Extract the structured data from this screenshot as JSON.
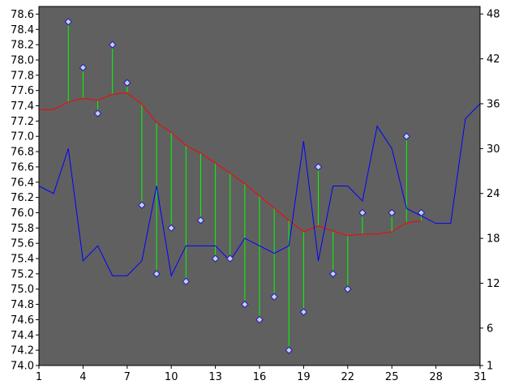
{
  "chart_data": {
    "type": "line",
    "x_axis": {
      "min": 1,
      "max": 31,
      "ticks": [
        1,
        4,
        7,
        10,
        13,
        16,
        19,
        22,
        25,
        28,
        31
      ]
    },
    "left_axis": {
      "min": 74.0,
      "max": 78.7,
      "ticks": [
        74.0,
        74.2,
        74.4,
        74.6,
        74.8,
        75.0,
        75.2,
        75.4,
        75.6,
        75.8,
        76.0,
        76.2,
        76.4,
        76.6,
        76.8,
        77.0,
        77.2,
        77.4,
        77.6,
        77.8,
        78.0,
        78.2,
        78.4,
        78.6
      ]
    },
    "right_axis": {
      "min": 1,
      "max": 49,
      "ticks": [
        1,
        6,
        12,
        18,
        24,
        30,
        36,
        42,
        48
      ]
    },
    "grid": false,
    "plot_background": "#606060",
    "series": [
      {
        "kind": "markers_with_drop_lines",
        "axis": "left",
        "marker_color": "#c8c8ff",
        "drop_line_color": "#00ff00",
        "x": [
          3,
          4,
          5,
          6,
          7,
          8,
          9,
          10,
          11,
          12,
          13,
          14,
          15,
          16,
          17,
          18,
          19,
          20,
          21,
          22,
          23,
          25,
          26,
          27
        ],
        "values": [
          78.5,
          77.9,
          77.3,
          78.2,
          77.7,
          76.1,
          75.2,
          75.8,
          75.1,
          75.9,
          75.4,
          75.4,
          74.8,
          74.6,
          74.9,
          74.2,
          74.7,
          76.6,
          75.2,
          75.0,
          76.0,
          76.0,
          77.0,
          76.0
        ]
      },
      {
        "kind": "line",
        "axis": "left",
        "color": "#ff0000",
        "x": [
          1,
          2,
          3,
          4,
          5,
          6,
          7,
          8,
          9,
          10,
          11,
          12,
          13,
          14,
          15,
          16,
          17,
          18,
          19,
          20,
          21,
          22,
          23,
          24,
          25,
          26,
          27
        ],
        "values": [
          77.35,
          77.35,
          77.45,
          77.5,
          77.47,
          77.55,
          77.57,
          77.42,
          77.18,
          77.05,
          76.88,
          76.78,
          76.65,
          76.52,
          76.38,
          76.22,
          76.06,
          75.9,
          75.75,
          75.83,
          75.76,
          75.7,
          75.72,
          75.72,
          75.75,
          75.87,
          75.89
        ]
      },
      {
        "kind": "line",
        "axis": "right",
        "color": "#0000ff",
        "x": [
          1,
          2,
          3,
          4,
          5,
          6,
          7,
          8,
          9,
          10,
          11,
          12,
          13,
          14,
          15,
          16,
          17,
          18,
          19,
          20,
          21,
          22,
          23,
          24,
          25,
          26,
          27,
          28,
          29,
          30,
          31
        ],
        "values": [
          25,
          24,
          30,
          15,
          17,
          13,
          13,
          15,
          25,
          13,
          17,
          17,
          17,
          15,
          18,
          17,
          16,
          17,
          31,
          15,
          25,
          25,
          23,
          33,
          30,
          22,
          21,
          20,
          20,
          34,
          36
        ]
      }
    ]
  }
}
